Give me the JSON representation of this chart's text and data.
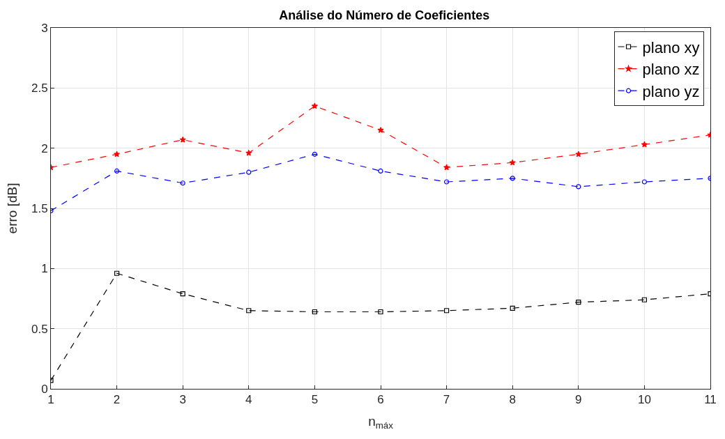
{
  "chart_data": {
    "type": "line",
    "title": "Análise do Número de Coeficientes",
    "xlabel": "n$_{máx}$",
    "ylabel": "erro [dB]",
    "x": [
      1,
      2,
      3,
      4,
      5,
      6,
      7,
      8,
      9,
      10,
      11
    ],
    "series": [
      {
        "name": "plano xy",
        "color": "#000000",
        "marker": "square",
        "values": [
          0.07,
          0.96,
          0.79,
          0.65,
          0.64,
          0.64,
          0.65,
          0.67,
          0.72,
          0.74,
          0.79
        ]
      },
      {
        "name": "plano xz",
        "color": "#ff0000",
        "marker": "star",
        "values": [
          1.84,
          1.95,
          2.07,
          1.96,
          2.35,
          2.15,
          1.84,
          1.88,
          1.95,
          2.03,
          2.11
        ]
      },
      {
        "name": "plano yz",
        "color": "#0000ff",
        "marker": "circle",
        "values": [
          1.48,
          1.81,
          1.71,
          1.8,
          1.95,
          1.81,
          1.72,
          1.75,
          1.68,
          1.72,
          1.75
        ]
      }
    ],
    "xlim": [
      1,
      11
    ],
    "xticks": [
      1,
      2,
      3,
      4,
      5,
      6,
      7,
      8,
      9,
      10,
      11
    ],
    "ylim": [
      0,
      3
    ],
    "yticks": [
      0,
      0.5,
      1,
      1.5,
      2,
      2.5,
      3
    ],
    "grid": true,
    "legend": "top right",
    "line_style": "dashed"
  }
}
